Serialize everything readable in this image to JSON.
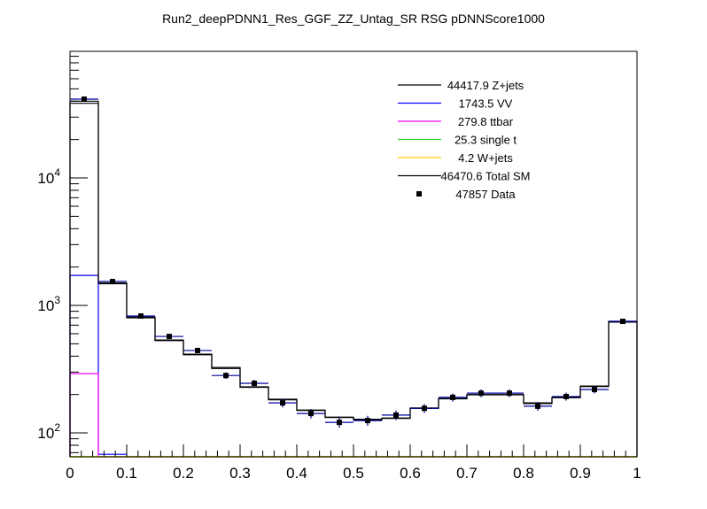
{
  "chart_data": {
    "type": "bar",
    "title": "Run2_deepPDNN1_Res_GGF_ZZ_Untag_SR RSG  pDNNScore1000",
    "xlabel": "",
    "ylabel": "",
    "xlim": [
      0,
      1
    ],
    "ylim": [
      65,
      98400
    ],
    "yscale": "log",
    "grid": false,
    "legend_position": "top-right",
    "x_tick_labels": [
      "0",
      "0.1",
      "0.2",
      "0.3",
      "0.4",
      "0.5",
      "0.6",
      "0.7",
      "0.8",
      "0.9",
      "1"
    ],
    "y_tick_labels": [
      {
        "base": "10",
        "exp": "2",
        "value": 100
      },
      {
        "base": "10",
        "exp": "3",
        "value": 1000
      },
      {
        "base": "10",
        "exp": "4",
        "value": 10000
      }
    ],
    "bin_edges": [
      0,
      0.05,
      0.1,
      0.15,
      0.2,
      0.25,
      0.3,
      0.35,
      0.4,
      0.45,
      0.5,
      0.55,
      0.6,
      0.65,
      0.7,
      0.75,
      0.8,
      0.85,
      0.9,
      0.95,
      1.0
    ],
    "series": [
      {
        "name": "Z+jets",
        "legend": "44417.9 Z+jets",
        "color": "#000000",
        "style": "line",
        "values": [
          38500,
          1480,
          800,
          530,
          410,
          320,
          228,
          182,
          150,
          132,
          127,
          130,
          156,
          185,
          199,
          199,
          170,
          189,
          231,
          740
        ]
      },
      {
        "name": "VV",
        "legend": "1743.5 VV",
        "color": "#0000ff",
        "style": "line",
        "values": [
          1720,
          68,
          null,
          null,
          null,
          null,
          null,
          null,
          null,
          null,
          null,
          null,
          null,
          null,
          null,
          null,
          null,
          null,
          null,
          null
        ]
      },
      {
        "name": "ttbar",
        "legend": "279.8 ttbar",
        "color": "#ff00ff",
        "style": "line",
        "values": [
          292,
          null,
          null,
          null,
          null,
          null,
          null,
          null,
          null,
          null,
          null,
          null,
          null,
          null,
          null,
          null,
          null,
          null,
          null,
          null
        ]
      },
      {
        "name": "single t",
        "legend": "25.3 single t",
        "color": "#33cc33",
        "style": "line",
        "values": [
          null,
          null,
          null,
          null,
          null,
          null,
          null,
          null,
          null,
          null,
          null,
          null,
          null,
          null,
          null,
          null,
          null,
          null,
          null,
          null
        ]
      },
      {
        "name": "W+jets",
        "legend": "4.2 W+jets",
        "color": "#ffcc00",
        "style": "line",
        "values": [
          null,
          null,
          null,
          null,
          null,
          null,
          null,
          null,
          null,
          null,
          null,
          null,
          null,
          null,
          null,
          null,
          null,
          null,
          null,
          null
        ]
      },
      {
        "name": "Total SM",
        "legend": "46470.6 Total SM",
        "color": "#000000",
        "style": "line",
        "values": [
          40000,
          1500,
          810,
          535,
          415,
          326,
          230,
          184,
          151,
          133,
          128,
          131,
          157,
          186,
          200,
          200,
          172,
          190,
          233,
          750
        ]
      },
      {
        "name": "Data",
        "legend": "47857 Data",
        "color": "#000000",
        "errcolor": "#000099",
        "style": "marker",
        "values": [
          41500,
          1540,
          826,
          571,
          443,
          282,
          245,
          172,
          142,
          121,
          125,
          138,
          156,
          190,
          205,
          205,
          162,
          193,
          219,
          750
        ]
      }
    ]
  }
}
